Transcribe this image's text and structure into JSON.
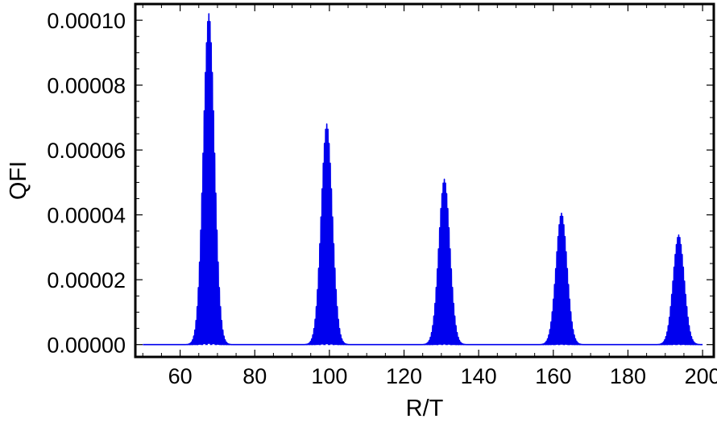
{
  "chart_data": {
    "type": "line",
    "xlabel": "R/T",
    "ylabel": "QFI",
    "xlim": [
      48,
      203
    ],
    "ylim": [
      -3.8e-06,
      0.000105
    ],
    "x_ticks": [
      60,
      80,
      100,
      120,
      140,
      160,
      180,
      200
    ],
    "x_tick_labels": [
      "60",
      "80",
      "100",
      "120",
      "140",
      "160",
      "180",
      "200"
    ],
    "y_ticks": [
      0,
      2e-05,
      4e-05,
      6e-05,
      8e-05,
      0.0001
    ],
    "y_tick_labels": [
      "0.00000",
      "0.00002",
      "0.00004",
      "0.00006",
      "0.00008",
      "0.00010"
    ],
    "grid": false,
    "frame": "box",
    "series": [
      {
        "color": "#0000ee",
        "x_range": [
          50,
          200
        ],
        "baseline": 0,
        "description": "Baseline near zero with five oscillating peaks of decreasing height",
        "peaks": [
          {
            "center": 67.7,
            "max": 0.000102,
            "width": 2.0
          },
          {
            "center": 99.3,
            "max": 6.8e-05,
            "width": 2.0
          },
          {
            "center": 130.8,
            "max": 5.1e-05,
            "width": 2.0
          },
          {
            "center": 162.2,
            "max": 4.05e-05,
            "width": 2.0
          },
          {
            "center": 193.6,
            "max": 3.38e-05,
            "width": 2.0
          }
        ]
      }
    ]
  }
}
